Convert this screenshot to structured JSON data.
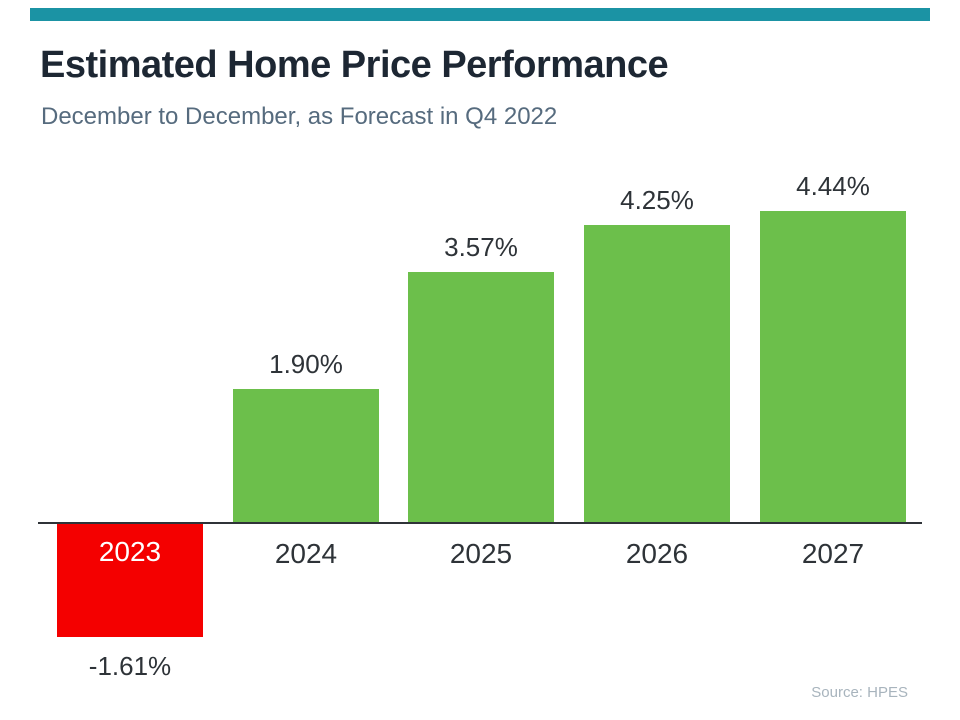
{
  "header": {
    "title": "Estimated Home Price Performance",
    "subtitle": "December to December, as Forecast in Q4 2022"
  },
  "source": "Source: HPES",
  "colors": {
    "accent_stripe": "#1b93a4",
    "bar_positive": "#6cbf4b",
    "bar_negative": "#f40000",
    "axis": "#2f3338"
  },
  "chart_data": {
    "type": "bar",
    "title": "Estimated Home Price Performance",
    "subtitle": "December to December, as Forecast in Q4 2022",
    "categories": [
      "2023",
      "2024",
      "2025",
      "2026",
      "2027"
    ],
    "values": [
      -1.61,
      1.9,
      3.57,
      4.25,
      4.44
    ],
    "value_labels": [
      "-1.61%",
      "1.90%",
      "3.57%",
      "4.25%",
      "4.44%"
    ],
    "xlabel": "",
    "ylabel": "",
    "ylim": [
      -2,
      5
    ],
    "grid": false,
    "legend": false,
    "source": "Source: HPES"
  }
}
